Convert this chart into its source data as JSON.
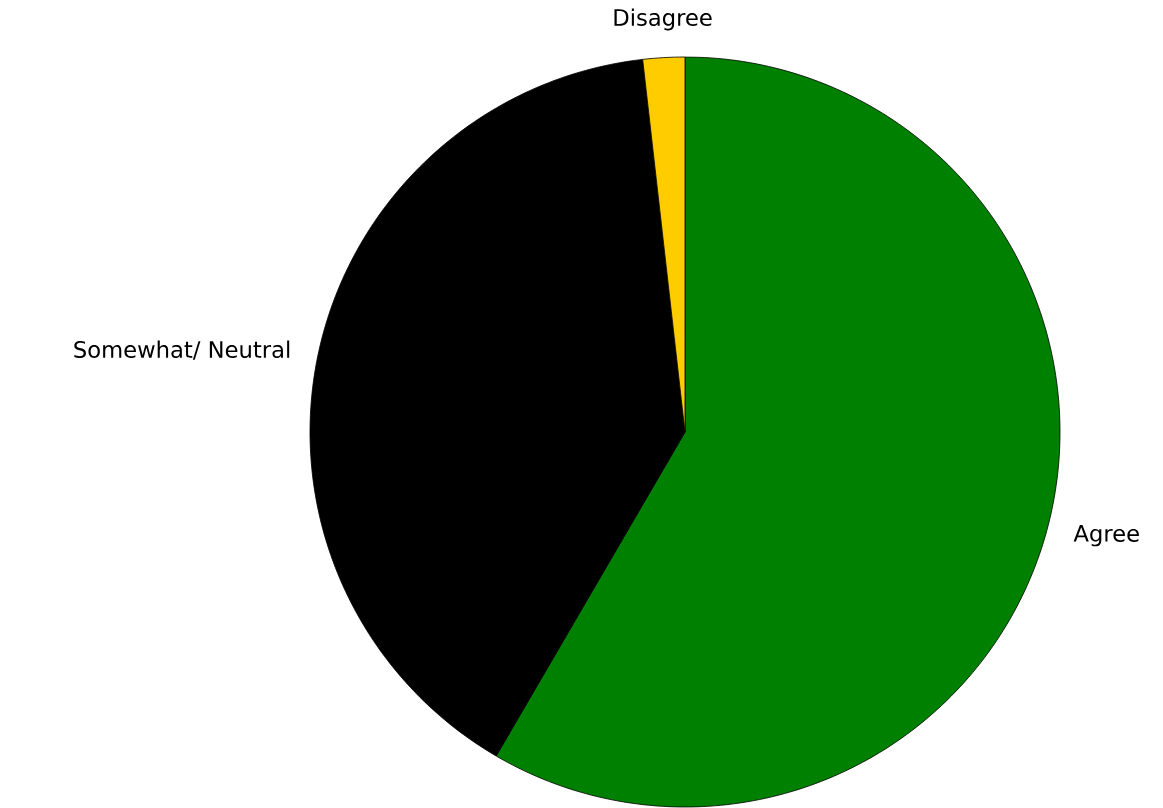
{
  "chart_data": {
    "type": "pie",
    "categories": [
      "Agree",
      "Somewhat/ Neutral",
      "Disagree"
    ],
    "values": [
      58.4,
      39.8,
      1.8
    ],
    "colors": [
      "#008000",
      "#000000",
      "#ffcc00"
    ]
  }
}
